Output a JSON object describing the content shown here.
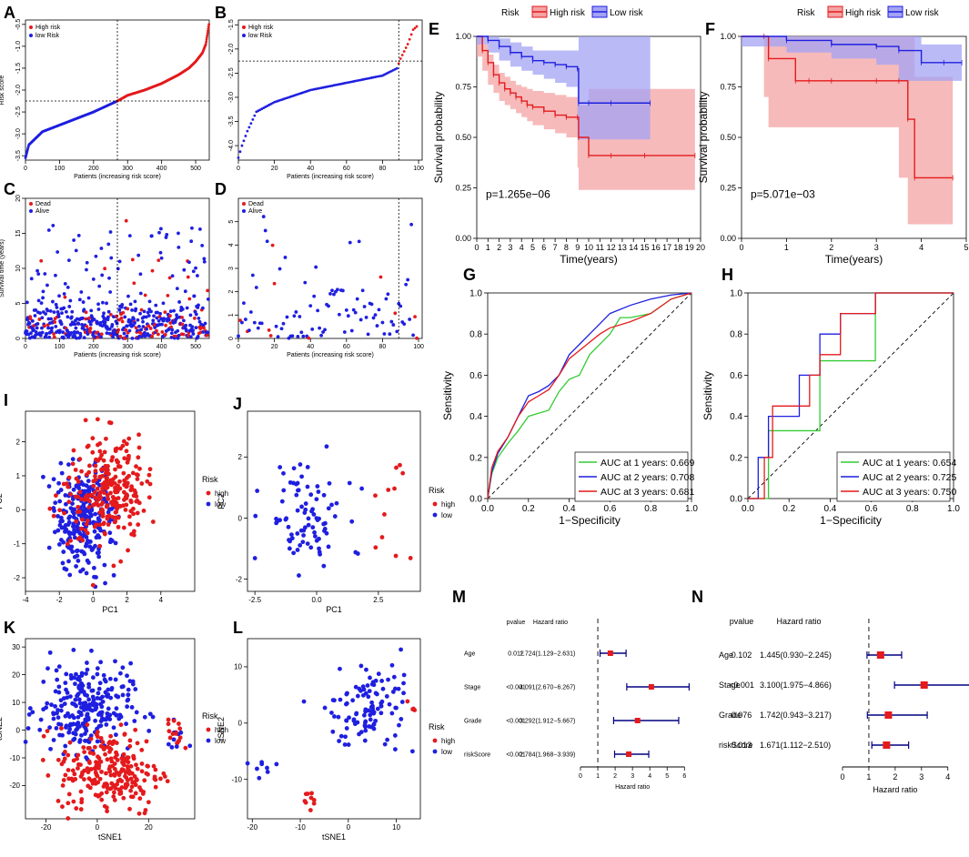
{
  "panel_labels": {
    "A": "A",
    "B": "B",
    "C": "C",
    "D": "D",
    "E": "E",
    "F": "F",
    "G": "G",
    "H": "H",
    "I": "I",
    "J": "J",
    "K": "K",
    "L": "L",
    "M": "M",
    "N": "N"
  },
  "colors": {
    "red": "#e41a1c",
    "blue": "#1f1fe0",
    "green": "#33cc33",
    "red_fill": "#f4a3a3",
    "blue_fill": "#a3a3f4"
  },
  "chart_data": [
    {
      "panel": "A",
      "type": "scatter",
      "ylabel": "Risk score",
      "xlabel": "Patients (increasing risk score)",
      "xlim": [
        0,
        540
      ],
      "ylim": [
        -3.6,
        -0.4
      ],
      "xticks": [
        "0",
        "100",
        "200",
        "300",
        "400",
        "500"
      ],
      "yticks": [
        "-3.5",
        "-3.0",
        "-2.5",
        "-2.0",
        "-1.5",
        "-1.0",
        "-0.5"
      ],
      "cutoff_x": 270,
      "cutoff_y": -2.25,
      "n": 540,
      "curve": {
        "x": [
          0,
          10,
          50,
          100,
          150,
          200,
          270,
          300,
          350,
          400,
          450,
          480,
          500,
          520,
          530,
          540
        ],
        "y": [
          -3.55,
          -3.25,
          -2.95,
          -2.8,
          -2.65,
          -2.5,
          -2.25,
          -2.12,
          -2.0,
          -1.85,
          -1.65,
          -1.5,
          -1.35,
          -1.15,
          -0.95,
          -0.45
        ]
      },
      "legend": [
        "High risk",
        "low Risk"
      ]
    },
    {
      "panel": "B",
      "type": "scatter",
      "ylabel": "",
      "xlabel": "Patients (increasing risk score)",
      "xlim": [
        0,
        102
      ],
      "ylim": [
        -4.3,
        -1.4
      ],
      "xticks": [
        "0",
        "20",
        "40",
        "60",
        "80",
        "100"
      ],
      "yticks": [
        "-4.0",
        "-3.5",
        "-3.0",
        "-2.5",
        "-2.0",
        "-1.5"
      ],
      "cutoff_x": 89,
      "cutoff_y": -2.25,
      "n": 100,
      "curve": {
        "x": [
          0,
          2,
          5,
          10,
          20,
          40,
          60,
          80,
          88,
          90,
          94,
          97,
          100
        ],
        "y": [
          -4.25,
          -4.0,
          -3.7,
          -3.3,
          -3.1,
          -2.85,
          -2.7,
          -2.55,
          -2.4,
          -2.2,
          -1.9,
          -1.6,
          -1.5
        ]
      },
      "legend": [
        "High risk",
        "low Risk"
      ]
    },
    {
      "panel": "C",
      "type": "scatter",
      "ylabel": "Survival time (years)",
      "xlabel": "Patients (increasing risk score)",
      "xlim": [
        0,
        540
      ],
      "ylim": [
        0,
        20
      ],
      "xticks": [
        "0",
        "100",
        "200",
        "300",
        "400",
        "500"
      ],
      "yticks": [
        "0",
        "5",
        "10",
        "15",
        "20"
      ],
      "cutoff_x": 270,
      "legend": [
        "Dead",
        "Alive"
      ]
    },
    {
      "panel": "D",
      "type": "scatter",
      "ylabel": "",
      "xlabel": "Patients (increasing risk score)",
      "xlim": [
        0,
        102
      ],
      "ylim": [
        0,
        6
      ],
      "xticks": [
        "0",
        "20",
        "40",
        "60",
        "80",
        "100"
      ],
      "yticks": [
        "0",
        "1",
        "2",
        "3",
        "4",
        "5"
      ],
      "cutoff_x": 89,
      "legend": [
        "Dead",
        "Alive"
      ]
    },
    {
      "panel": "E",
      "type": "line",
      "title_legend": "Risk",
      "legend": [
        "High risk",
        "Low risk"
      ],
      "ylabel": "Survival probability",
      "xlabel": "Time(years)",
      "pvalue": "p=1.265e−06",
      "xticks": [
        "0",
        "1",
        "2",
        "3",
        "4",
        "5",
        "6",
        "7",
        "8",
        "9",
        "10",
        "11",
        "12",
        "13",
        "14",
        "15",
        "16",
        "17",
        "18",
        "19",
        "20"
      ],
      "yticks": [
        "0.00",
        "0.25",
        "0.50",
        "0.75",
        "1.00"
      ],
      "xlim": [
        0,
        20
      ],
      "ylim": [
        0,
        1
      ],
      "series": [
        {
          "name": "High risk",
          "x": [
            0,
            0.5,
            1,
            1.5,
            2,
            2.5,
            3,
            3.5,
            4,
            4.5,
            5,
            6,
            7,
            8,
            9,
            9.1,
            10,
            12,
            15,
            19.5
          ],
          "y": [
            1,
            0.93,
            0.87,
            0.81,
            0.77,
            0.74,
            0.72,
            0.7,
            0.68,
            0.66,
            0.65,
            0.63,
            0.61,
            0.6,
            0.6,
            0.5,
            0.41,
            0.41,
            0.41,
            0.41
          ],
          "lo": [
            1,
            0.9,
            0.83,
            0.76,
            0.72,
            0.68,
            0.66,
            0.64,
            0.62,
            0.6,
            0.58,
            0.56,
            0.54,
            0.52,
            0.5,
            0.35,
            0.24,
            0.24,
            0.24,
            0.24
          ],
          "hi": [
            1,
            0.96,
            0.91,
            0.86,
            0.82,
            0.8,
            0.78,
            0.76,
            0.75,
            0.74,
            0.73,
            0.72,
            0.71,
            0.7,
            0.7,
            0.66,
            0.74,
            0.74,
            0.74,
            0.74
          ]
        },
        {
          "name": "Low risk",
          "x": [
            0,
            1,
            2,
            3,
            4,
            5,
            6,
            7,
            8,
            9,
            9.1,
            10,
            12,
            15.5
          ],
          "y": [
            1,
            0.98,
            0.95,
            0.92,
            0.9,
            0.88,
            0.87,
            0.86,
            0.85,
            0.84,
            0.67,
            0.67,
            0.67,
            0.67
          ],
          "lo": [
            1,
            0.96,
            0.92,
            0.88,
            0.85,
            0.83,
            0.81,
            0.79,
            0.77,
            0.75,
            0.49,
            0.49,
            0.49,
            0.49
          ],
          "hi": [
            1,
            1,
            0.99,
            0.97,
            0.95,
            0.93,
            0.93,
            0.93,
            0.93,
            0.93,
            1,
            1,
            1,
            1
          ]
        }
      ]
    },
    {
      "panel": "F",
      "type": "line",
      "title_legend": "Risk",
      "legend": [
        "High risk",
        "Low risk"
      ],
      "ylabel": "Survival probability",
      "xlabel": "Time(years)",
      "pvalue": "p=5.071e−03",
      "xticks": [
        "0",
        "1",
        "2",
        "3",
        "4",
        "5"
      ],
      "yticks": [
        "0.00",
        "0.25",
        "0.50",
        "0.75",
        "1.00"
      ],
      "xlim": [
        0,
        5
      ],
      "ylim": [
        0,
        1
      ],
      "series": [
        {
          "name": "High risk",
          "x": [
            0,
            0.5,
            0.6,
            1.2,
            1.5,
            2,
            3,
            3.5,
            3.7,
            3.85,
            4.7
          ],
          "y": [
            1,
            1,
            0.89,
            0.78,
            0.78,
            0.78,
            0.78,
            0.78,
            0.59,
            0.3,
            0.3
          ],
          "lo": [
            1,
            1,
            0.7,
            0.55,
            0.55,
            0.55,
            0.55,
            0.55,
            0.3,
            0.07,
            0.07
          ],
          "hi": [
            1,
            1,
            1,
            1,
            1,
            1,
            1,
            1,
            1,
            0.8,
            0.8
          ]
        },
        {
          "name": "Low risk",
          "x": [
            0,
            1,
            2,
            3,
            3.5,
            4,
            4.5,
            4.9
          ],
          "y": [
            1,
            0.98,
            0.96,
            0.95,
            0.93,
            0.87,
            0.87,
            0.87
          ],
          "lo": [
            1,
            0.95,
            0.92,
            0.89,
            0.86,
            0.78,
            0.78,
            0.78
          ],
          "hi": [
            1,
            1,
            1,
            1,
            1,
            0.96,
            0.96,
            0.96
          ]
        }
      ]
    },
    {
      "panel": "G",
      "type": "line",
      "ylabel": "Sensitivity",
      "xlabel": "1−Specificity",
      "xticks": [
        "0.0",
        "0.2",
        "0.4",
        "0.6",
        "0.8",
        "1.0"
      ],
      "yticks": [
        "0.0",
        "0.2",
        "0.4",
        "0.6",
        "0.8",
        "1.0"
      ],
      "xlim": [
        0,
        1
      ],
      "ylim": [
        0,
        1
      ],
      "series": [
        {
          "name": "AUC at 1 years: 0.669",
          "x": [
            0,
            0.02,
            0.05,
            0.1,
            0.15,
            0.2,
            0.3,
            0.35,
            0.4,
            0.45,
            0.5,
            0.6,
            0.65,
            0.7,
            0.8,
            0.9,
            1
          ],
          "y": [
            0,
            0.12,
            0.2,
            0.27,
            0.33,
            0.4,
            0.43,
            0.52,
            0.58,
            0.6,
            0.7,
            0.8,
            0.88,
            0.88,
            0.9,
            0.97,
            1
          ]
        },
        {
          "name": "AUC at 2 years: 0.708",
          "x": [
            0,
            0.02,
            0.05,
            0.1,
            0.15,
            0.2,
            0.25,
            0.3,
            0.35,
            0.4,
            0.45,
            0.5,
            0.55,
            0.6,
            0.7,
            0.8,
            0.9,
            1
          ],
          "y": [
            0,
            0.13,
            0.22,
            0.3,
            0.4,
            0.5,
            0.52,
            0.55,
            0.6,
            0.7,
            0.75,
            0.8,
            0.85,
            0.9,
            0.94,
            0.97,
            0.99,
            1
          ]
        },
        {
          "name": "AUC at 3 years: 0.681",
          "x": [
            0,
            0.02,
            0.05,
            0.1,
            0.15,
            0.2,
            0.25,
            0.3,
            0.35,
            0.4,
            0.45,
            0.5,
            0.55,
            0.6,
            0.7,
            0.8,
            0.9,
            1
          ],
          "y": [
            0,
            0.15,
            0.23,
            0.3,
            0.4,
            0.47,
            0.5,
            0.53,
            0.6,
            0.68,
            0.72,
            0.76,
            0.8,
            0.83,
            0.86,
            0.9,
            0.97,
            1
          ]
        }
      ]
    },
    {
      "panel": "H",
      "type": "line",
      "ylabel": "Sensitivity",
      "xlabel": "1−Specificity",
      "xticks": [
        "0.0",
        "0.2",
        "0.4",
        "0.6",
        "0.8",
        "1.0"
      ],
      "yticks": [
        "0.0",
        "0.2",
        "0.4",
        "0.6",
        "0.8",
        "1.0"
      ],
      "xlim": [
        0,
        1
      ],
      "ylim": [
        0,
        1
      ],
      "series": [
        {
          "name": "AUC at 1 years: 0.654",
          "x": [
            0,
            0.1,
            0.1,
            0.35,
            0.35,
            0.62,
            0.62,
            1
          ],
          "y": [
            0,
            0,
            0.33,
            0.33,
            0.67,
            0.67,
            1,
            1
          ]
        },
        {
          "name": "AUC at 2 years: 0.725",
          "x": [
            0,
            0.05,
            0.05,
            0.1,
            0.1,
            0.25,
            0.25,
            0.35,
            0.35,
            0.45,
            0.45,
            0.62,
            0.62,
            1
          ],
          "y": [
            0,
            0,
            0.2,
            0.2,
            0.4,
            0.4,
            0.6,
            0.6,
            0.8,
            0.8,
            0.9,
            0.9,
            1,
            1
          ]
        },
        {
          "name": "AUC at 3 years: 0.750",
          "x": [
            0,
            0.08,
            0.08,
            0.12,
            0.12,
            0.3,
            0.3,
            0.35,
            0.35,
            0.45,
            0.45,
            0.62,
            0.62,
            1
          ],
          "y": [
            0,
            0,
            0.2,
            0.2,
            0.45,
            0.45,
            0.6,
            0.6,
            0.7,
            0.7,
            0.9,
            0.9,
            1,
            1
          ]
        }
      ]
    },
    {
      "panel": "I",
      "type": "scatter",
      "xlabel": "PC1",
      "ylabel": "PC2",
      "xticks": [
        "-4",
        "-2",
        "0",
        "2",
        "4"
      ],
      "yticks": [
        "-2",
        "-1",
        "0",
        "1",
        "2"
      ],
      "xlim": [
        -4,
        6
      ],
      "ylim": [
        -2.4,
        2.9
      ],
      "legend_title": "Risk",
      "legend": [
        "high",
        "low"
      ]
    },
    {
      "panel": "J",
      "type": "scatter",
      "xlabel": "PC1",
      "ylabel": "PC2",
      "xticks": [
        "-2.5",
        "0.0",
        "2.5"
      ],
      "yticks": [
        "-2",
        "0",
        "2"
      ],
      "xlim": [
        -2.8,
        4.2
      ],
      "ylim": [
        -2.4,
        3.5
      ],
      "legend_title": "Risk",
      "legend": [
        "high",
        "low"
      ]
    },
    {
      "panel": "K",
      "type": "scatter",
      "xlabel": "tSNE1",
      "ylabel": "tSNE2",
      "xticks": [
        "-20",
        "0",
        "20"
      ],
      "yticks": [
        "-20",
        "-10",
        "0",
        "10",
        "20",
        "30"
      ],
      "xlim": [
        -28,
        38
      ],
      "ylim": [
        -32,
        33
      ],
      "legend_title": "Risk",
      "legend": [
        "high",
        "low"
      ]
    },
    {
      "panel": "L",
      "type": "scatter",
      "xlabel": "tSNE1",
      "ylabel": "tSNE2",
      "xticks": [
        "-20",
        "-10",
        "0",
        "10"
      ],
      "yticks": [
        "-10",
        "0",
        "10"
      ],
      "xlim": [
        -21,
        15
      ],
      "ylim": [
        -17,
        15
      ],
      "legend_title": "Risk",
      "legend": [
        "high",
        "low"
      ]
    },
    {
      "panel": "M",
      "type": "forest",
      "col_pvalue": "pvalue",
      "col_hr": "Hazard ratio",
      "xlabel": "Hazard ratio",
      "xticks": [
        "0",
        "1",
        "2",
        "3",
        "4",
        "5",
        "6"
      ],
      "xlim": [
        0,
        6.3
      ],
      "rows": [
        {
          "label": "Age",
          "pvalue": "0.012",
          "hr_text": "1.724(1.129−2.631)",
          "hr": 1.724,
          "lo": 1.129,
          "hi": 2.631
        },
        {
          "label": "Stage",
          "pvalue": "<0.001",
          "hr_text": "4.091(2.670−6.267)",
          "hr": 4.091,
          "lo": 2.67,
          "hi": 6.267
        },
        {
          "label": "Grade",
          "pvalue": "<0.001",
          "hr_text": "3.292(1.912−5.667)",
          "hr": 3.292,
          "lo": 1.912,
          "hi": 5.667
        },
        {
          "label": "riskScore",
          "pvalue": "<0.001",
          "hr_text": "2.784(1.968−3.939)",
          "hr": 2.784,
          "lo": 1.968,
          "hi": 3.939
        }
      ]
    },
    {
      "panel": "N",
      "type": "forest",
      "col_pvalue": "pvalue",
      "col_hr": "Hazard ratio",
      "xlabel": "Hazard ratio",
      "xticks": [
        "0",
        "1",
        "2",
        "3",
        "4"
      ],
      "xlim": [
        0,
        4.7
      ],
      "rows": [
        {
          "label": "Age",
          "pvalue": "0.102",
          "hr_text": "1.445(0.930−2.245)",
          "hr": 1.445,
          "lo": 0.93,
          "hi": 2.245
        },
        {
          "label": "Stage",
          "pvalue": "<0.001",
          "hr_text": "3.100(1.975−4.866)",
          "hr": 3.1,
          "lo": 1.975,
          "hi": 4.866
        },
        {
          "label": "Grade",
          "pvalue": "0.076",
          "hr_text": "1.742(0.943−3.217)",
          "hr": 1.742,
          "lo": 0.943,
          "hi": 3.217
        },
        {
          "label": "riskScore",
          "pvalue": "0.013",
          "hr_text": "1.671(1.112−2.510)",
          "hr": 1.671,
          "lo": 1.112,
          "hi": 2.51
        }
      ]
    }
  ]
}
